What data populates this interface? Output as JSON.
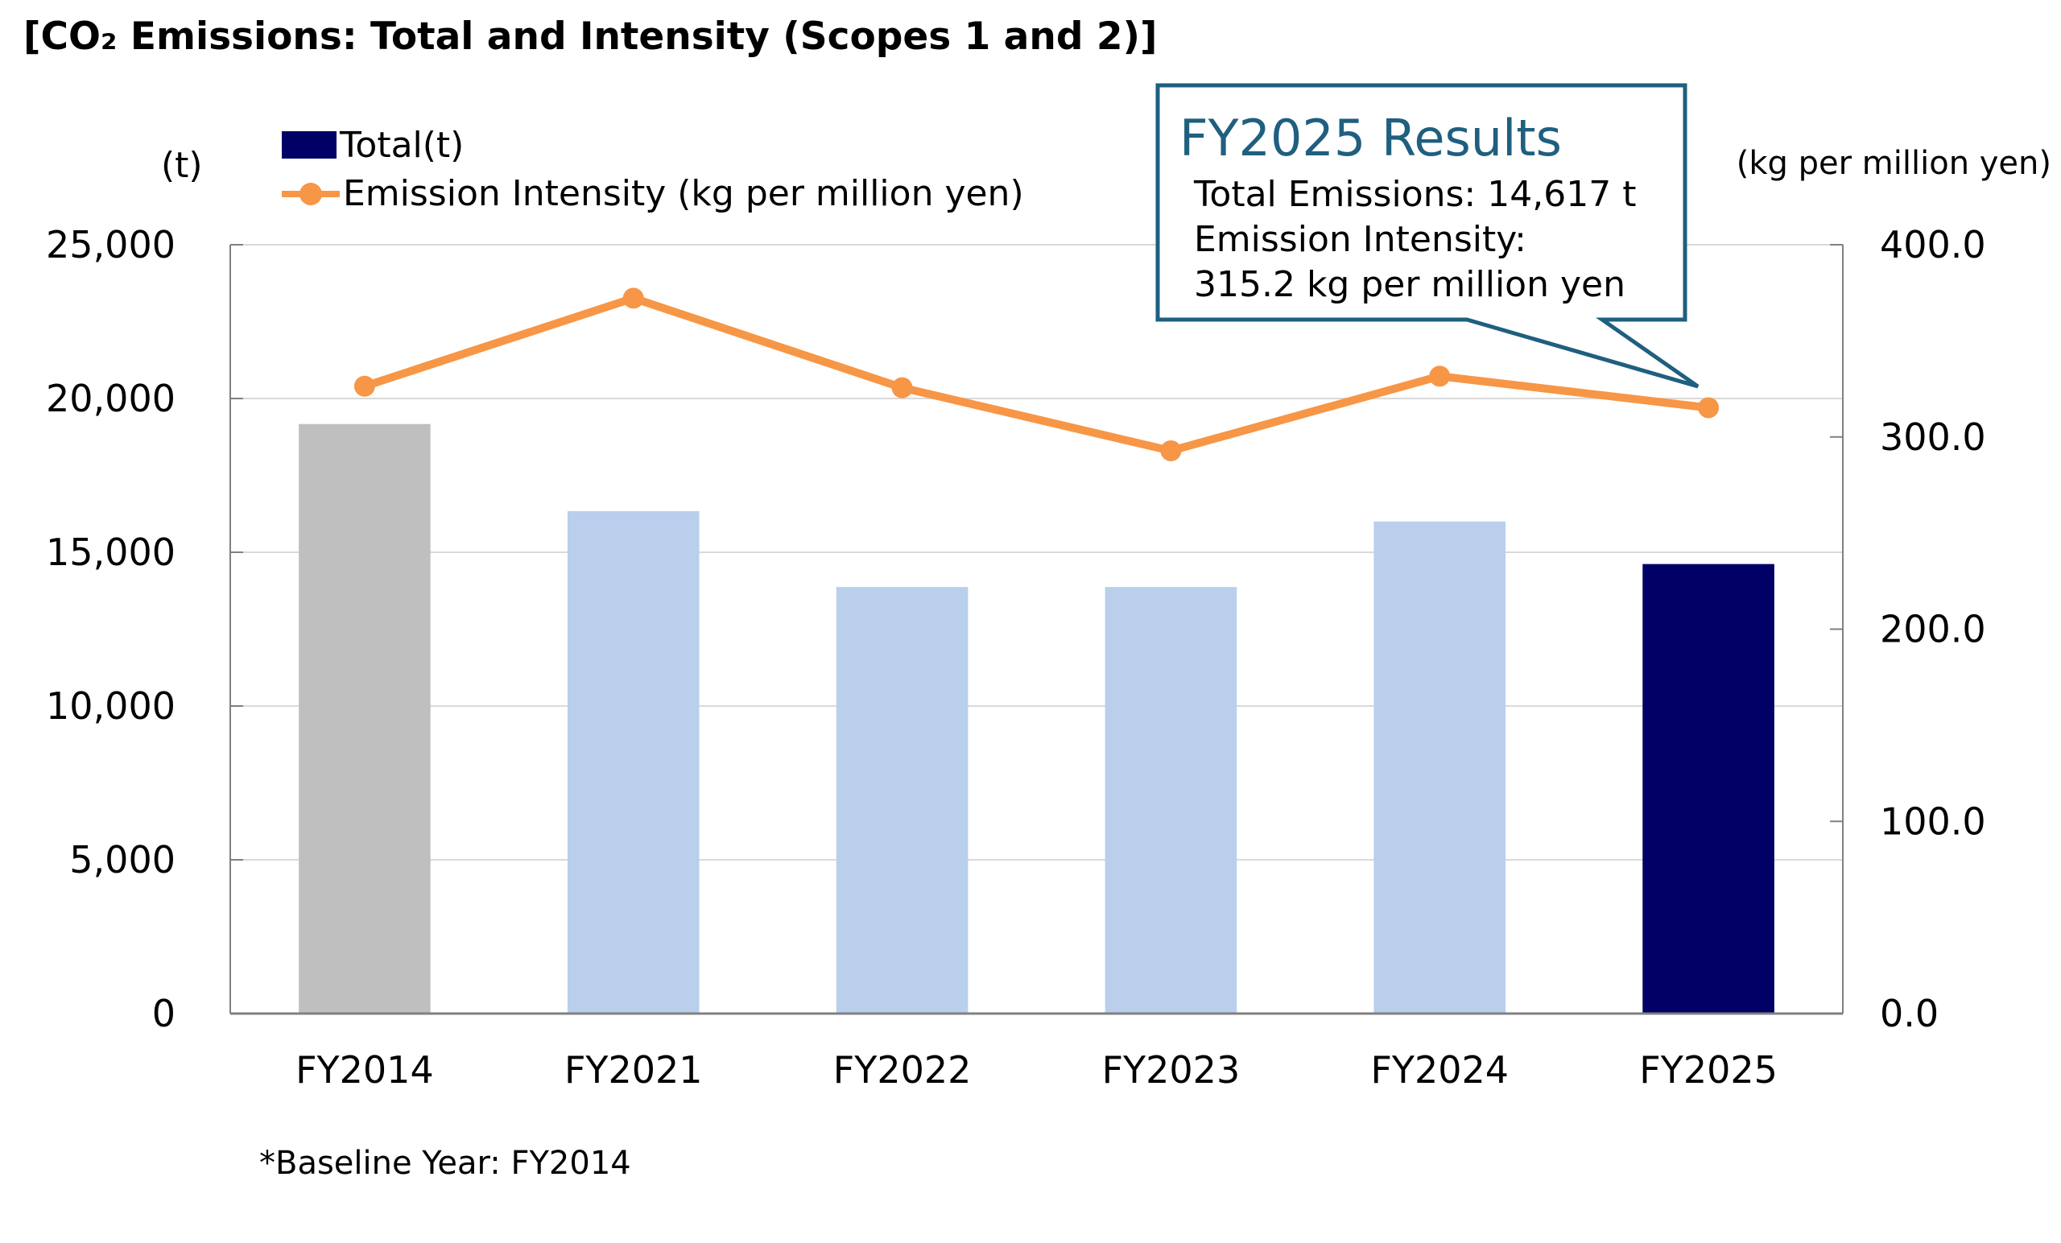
{
  "title": "[CO₂ Emissions: Total and Intensity (Scopes 1 and 2)]",
  "left_unit": "(t)",
  "right_unit": "(kg per million yen)",
  "legend": [
    {
      "label": "Total(t)",
      "type": "bar",
      "color": "#000066"
    },
    {
      "label": "Emission Intensity (kg per million yen)",
      "type": "line",
      "color": "#F79646"
    }
  ],
  "callout": {
    "heading": "FY2025 Results",
    "lines": [
      "Total Emissions: 14,617 t",
      "Emission Intensity:",
      "315.2 kg per million yen"
    ],
    "border_color": "#1F5F7F"
  },
  "footnote": "*Baseline Year: FY2014",
  "chart_data": {
    "type": "bar",
    "title": "[CO₂ Emissions: Total and Intensity (Scopes 1 and 2)]",
    "categories": [
      "FY2014",
      "FY2021",
      "FY2022",
      "FY2023",
      "FY2024",
      "FY2025"
    ],
    "series": [
      {
        "name": "Total(t)",
        "type": "bar",
        "axis": "left",
        "values": [
          19170,
          16340,
          13870,
          13870,
          16000,
          14617
        ],
        "colors": [
          "#BFBFBF",
          "#B9CFEC",
          "#B9CFEC",
          "#B9CFEC",
          "#B9CFEC",
          "#000066"
        ]
      },
      {
        "name": "Emission Intensity (kg per million yen)",
        "type": "line",
        "axis": "right",
        "values": [
          326.4,
          372.2,
          325.6,
          292.8,
          331.6,
          315.2
        ],
        "color": "#F79646"
      }
    ],
    "left_axis": {
      "label": "(t)",
      "range": [
        0,
        25000
      ],
      "ticks": [
        0,
        5000,
        10000,
        15000,
        20000,
        25000
      ],
      "tick_labels": [
        "0",
        "5,000",
        "10,000",
        "15,000",
        "20,000",
        "25,000"
      ]
    },
    "right_axis": {
      "label": "(kg per million yen)",
      "range": [
        0,
        400
      ],
      "ticks": [
        0,
        100,
        200,
        300,
        400
      ],
      "tick_labels": [
        "0.0",
        "100.0",
        "200.0",
        "300.0",
        "400.0"
      ]
    },
    "grid": true,
    "legend_position": "top-left"
  }
}
